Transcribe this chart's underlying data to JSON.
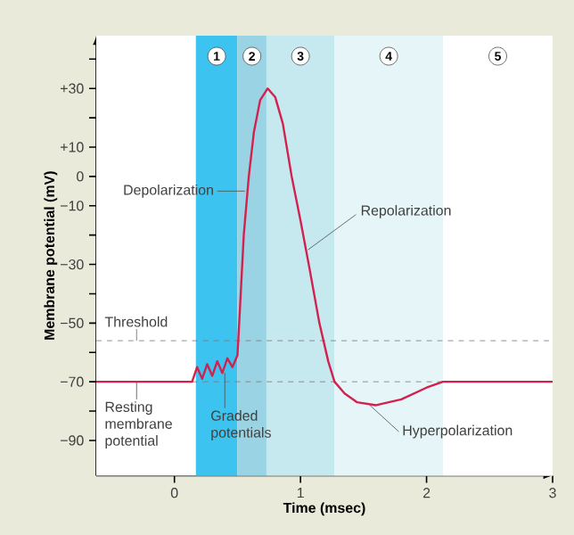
{
  "chart_data": {
    "type": "line",
    "xlabel": "Time (msec)",
    "ylabel": "Membrane potential (mV)",
    "x": [
      -0.62,
      0.14,
      0.18,
      0.22,
      0.26,
      0.3,
      0.34,
      0.38,
      0.42,
      0.46,
      0.5,
      0.52,
      0.55,
      0.59,
      0.63,
      0.68,
      0.74,
      0.8,
      0.86,
      0.93,
      1.0,
      1.07,
      1.15,
      1.22,
      1.27,
      1.35,
      1.45,
      1.6,
      1.8,
      2.0,
      2.13,
      3.0
    ],
    "values": [
      -70,
      -70,
      -65,
      -69,
      -64,
      -68,
      -63,
      -67,
      -62,
      -65,
      -61,
      -45,
      -20,
      0,
      15,
      26,
      30,
      27,
      18,
      0,
      -15,
      -31,
      -50,
      -63,
      -70,
      -74,
      -77,
      -78,
      -76,
      -72,
      -70,
      -70
    ],
    "color": "#d3214f",
    "line_style": "solid",
    "xlim": [
      -0.62,
      3.0
    ],
    "ylim": [
      -102,
      48
    ],
    "xticks": [
      0,
      1,
      2,
      3
    ],
    "yticks": [
      {
        "value": 40,
        "label": null
      },
      {
        "value": 30,
        "label": "+30"
      },
      {
        "value": 20,
        "label": null
      },
      {
        "value": 10,
        "label": "+10"
      },
      {
        "value": 0,
        "label": "0"
      },
      {
        "value": -10,
        "label": "−10"
      },
      {
        "value": -20,
        "label": null
      },
      {
        "value": -30,
        "label": "−30"
      },
      {
        "value": -40,
        "label": null
      },
      {
        "value": -50,
        "label": "−50"
      },
      {
        "value": -60,
        "label": null
      },
      {
        "value": -70,
        "label": "−70"
      },
      {
        "value": -80,
        "label": null
      },
      {
        "value": -90,
        "label": "−90"
      }
    ],
    "bands": [
      {
        "axis": "x",
        "from": 0.17,
        "to": 0.5,
        "label": "1",
        "color": "#3cc3ef"
      },
      {
        "axis": "x",
        "from": 0.5,
        "to": 0.73,
        "label": "2",
        "color": "#9ad3e3"
      },
      {
        "axis": "x",
        "from": 0.73,
        "to": 1.27,
        "label": "3",
        "color": "#c6e8ef"
      },
      {
        "axis": "x",
        "from": 1.27,
        "to": 2.13,
        "label": "4",
        "color": "#e6f5f8"
      },
      {
        "axis": "x",
        "from": 2.13,
        "to": 3.0,
        "label": "5",
        "color": "#ffffff"
      }
    ],
    "ref_lines": [
      {
        "axis": "y",
        "value": -56,
        "label": "Threshold",
        "color": "#777777",
        "line_style": "dashed"
      },
      {
        "axis": "y",
        "value": -70,
        "color": "#777777",
        "line_style": "dashed"
      }
    ],
    "annotations": [
      {
        "text": "Depolarization",
        "x": 0.56,
        "y": -5
      },
      {
        "text": "Repolarization",
        "x": 1.06,
        "y": -25
      },
      {
        "text": "Resting membrane potential",
        "x": -0.3,
        "y": -70
      },
      {
        "text": "Graded potentials",
        "x": 0.4,
        "y": -67
      },
      {
        "text": "Hyperpolarization",
        "x": 1.55,
        "y": -78
      }
    ]
  }
}
